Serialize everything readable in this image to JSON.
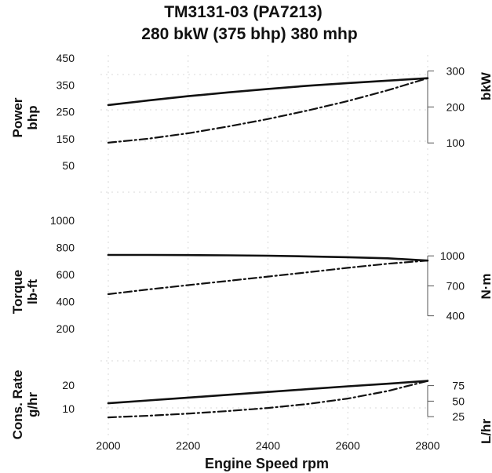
{
  "chart_data": {
    "type": "line",
    "title": "TM3131-03 (PA7213)",
    "subtitle": "280 bkW (375 bhp) 380 mhp",
    "xlabel": "Engine Speed rpm",
    "x_ticks": [
      "2000",
      "2200",
      "2400",
      "2600",
      "2800"
    ],
    "xlim": [
      2000,
      2800
    ],
    "grid": true,
    "panels": [
      {
        "id": "power",
        "ylabel_line1": "Power",
        "ylabel_line2": "bhp",
        "y_ticks": [
          "450",
          "350",
          "250",
          "150",
          "50"
        ],
        "ylim": [
          50,
          450
        ],
        "right_label": "bkW",
        "right_ticks": [
          "300",
          "200",
          "100"
        ],
        "right_tick_values_left_units": [
          402,
          268,
          134
        ],
        "series": [
          {
            "style": "solid",
            "x": [
              2000,
              2100,
              2200,
              2300,
              2400,
              2500,
              2600,
              2700,
              2800
            ],
            "y": [
              275,
              292,
              308,
              322,
              335,
              347,
              357,
              366,
              375
            ]
          },
          {
            "style": "dashdot",
            "x": [
              2000,
              2100,
              2200,
              2300,
              2400,
              2500,
              2600,
              2700,
              2800
            ],
            "y": [
              135,
              150,
              170,
              195,
              223,
              255,
              290,
              330,
              375
            ]
          }
        ]
      },
      {
        "id": "torque",
        "ylabel_line1": "Torque",
        "ylabel_line2": "lb-ft",
        "y_ticks": [
          "1000",
          "800",
          "600",
          "400",
          "200"
        ],
        "ylim": [
          200,
          1000
        ],
        "right_label": "N·m",
        "right_ticks": [
          "1000",
          "700",
          "400"
        ],
        "right_tick_values_left_units": [
          738,
          516,
          295
        ],
        "series": [
          {
            "style": "solid",
            "x": [
              2000,
              2100,
              2200,
              2300,
              2400,
              2500,
              2600,
              2700,
              2800
            ],
            "y": [
              745,
              745,
              744,
              742,
              739,
              734,
              728,
              720,
              703
            ]
          },
          {
            "style": "dashdot",
            "x": [
              2000,
              2100,
              2200,
              2300,
              2400,
              2500,
              2600,
              2700,
              2800
            ],
            "y": [
              455,
              490,
              522,
              553,
              585,
              617,
              650,
              680,
              703
            ]
          }
        ]
      },
      {
        "id": "consumption",
        "ylabel_line1": "Cons. Rate",
        "ylabel_line2": "g/hr",
        "y_ticks": [
          "20",
          "10"
        ],
        "ylim": [
          0,
          28
        ],
        "right_label": "L/hr",
        "right_ticks": [
          "75",
          "50",
          "25"
        ],
        "right_tick_values_left_units": [
          19.8,
          13.2,
          6.6
        ],
        "series": [
          {
            "style": "solid",
            "x": [
              2000,
              2100,
              2200,
              2300,
              2400,
              2500,
              2600,
              2700,
              2800
            ],
            "y": [
              12.3,
              13.5,
              14.7,
              15.9,
              17.1,
              18.3,
              19.5,
              20.6,
              21.8
            ]
          },
          {
            "style": "dashdot",
            "x": [
              2000,
              2100,
              2200,
              2300,
              2400,
              2500,
              2600,
              2700,
              2800
            ],
            "y": [
              6.3,
              7.0,
              7.9,
              9.0,
              10.3,
              12.0,
              14.3,
              17.5,
              21.8
            ]
          }
        ]
      }
    ]
  }
}
